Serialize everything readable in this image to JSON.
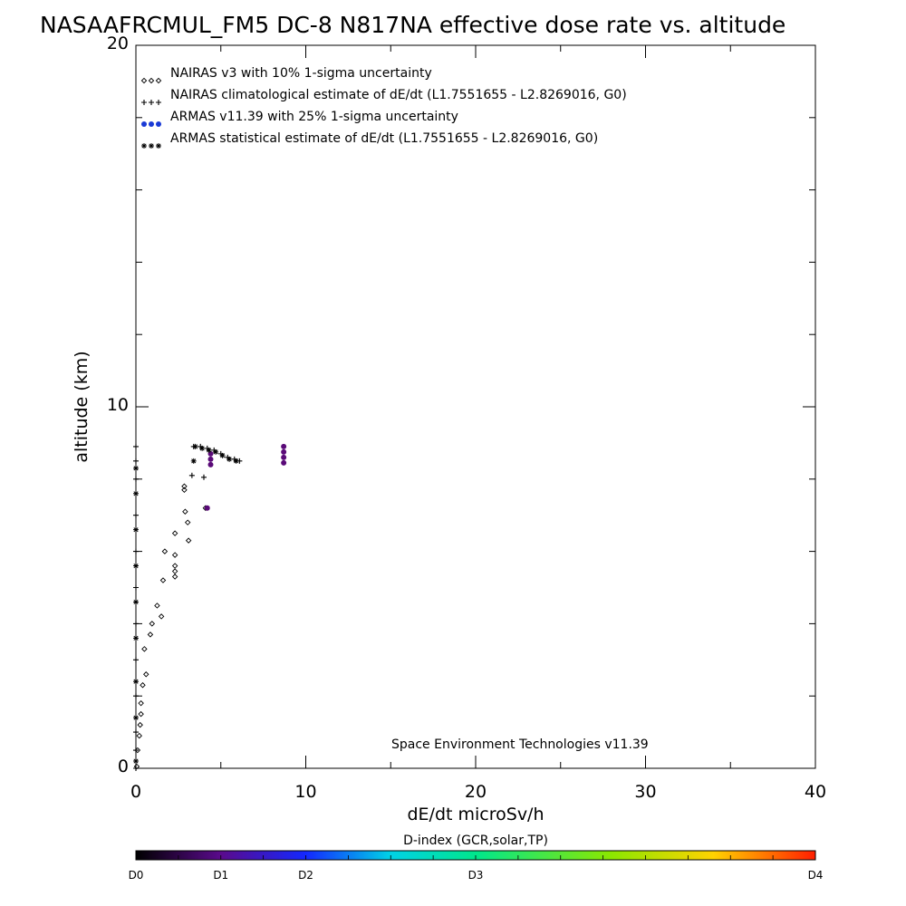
{
  "chart_data": {
    "type": "scatter",
    "title": "NASAAFRCMUL_FM5 DC-8   N817NA effective dose rate vs. altitude",
    "xlabel": "dE/dt microSv/h",
    "ylabel": "altitude (km)",
    "xlim": [
      0,
      40
    ],
    "ylim": [
      0,
      20
    ],
    "x_tick_labels": [
      "0",
      "10",
      "20",
      "30",
      "40"
    ],
    "y_tick_labels": [
      "0",
      "10",
      "20"
    ],
    "credit": "Space Environment Technologies v11.39",
    "legend_position": "top-left",
    "legend": [
      {
        "symbol": "◇◇◇",
        "label": "NAIRAS v3 with 10% 1-sigma uncertainty"
      },
      {
        "symbol": "+++",
        "label": "NAIRAS climatological estimate of dE/dt (L1.7551655 - L2.8269016, G0)"
      },
      {
        "symbol": "●●●",
        "label": "ARMAS v11.39 with 25% 1-sigma uncertainty"
      },
      {
        "symbol": "***",
        "label": "ARMAS statistical estimate of dE/dt (L1.7551655 - L2.8269016, G0)"
      }
    ],
    "series": [
      {
        "name": "NAIRAS v3 with 10% 1-sigma uncertainty",
        "marker": "diamond",
        "color": "#000000",
        "points": [
          [
            0.05,
            0.05
          ],
          [
            0.1,
            0.5
          ],
          [
            0.2,
            0.9
          ],
          [
            0.25,
            1.2
          ],
          [
            0.3,
            1.5
          ],
          [
            0.3,
            1.8
          ],
          [
            0.4,
            2.3
          ],
          [
            0.6,
            2.6
          ],
          [
            0.5,
            3.3
          ],
          [
            0.85,
            3.7
          ],
          [
            0.95,
            4.0
          ],
          [
            1.5,
            4.2
          ],
          [
            1.25,
            4.5
          ],
          [
            1.6,
            5.2
          ],
          [
            2.3,
            5.3
          ],
          [
            2.3,
            5.45
          ],
          [
            2.3,
            5.6
          ],
          [
            2.3,
            5.9
          ],
          [
            1.7,
            6.0
          ],
          [
            3.1,
            6.3
          ],
          [
            2.3,
            6.5
          ],
          [
            3.05,
            6.8
          ],
          [
            2.9,
            7.1
          ],
          [
            4.1,
            7.2
          ],
          [
            2.85,
            7.7
          ],
          [
            2.85,
            7.8
          ]
        ]
      },
      {
        "name": "NAIRAS climatological estimate of dE/dt (L1.7551655 - L2.8269016, G0)",
        "marker": "plus",
        "color": "#000000",
        "points": [
          [
            0.0,
            0.0
          ],
          [
            0.0,
            0.5
          ],
          [
            0.0,
            1.0
          ],
          [
            0.0,
            2.0
          ],
          [
            0.0,
            3.0
          ],
          [
            0.0,
            4.0
          ],
          [
            0.0,
            5.0
          ],
          [
            0.0,
            6.0
          ],
          [
            0.0,
            7.0
          ],
          [
            0.0,
            8.0
          ],
          [
            0.0,
            8.5
          ],
          [
            0.0,
            8.9
          ],
          [
            3.3,
            8.1
          ],
          [
            4.0,
            8.05
          ],
          [
            3.4,
            8.9
          ],
          [
            3.8,
            8.9
          ],
          [
            4.2,
            8.85
          ],
          [
            4.6,
            8.8
          ],
          [
            5.0,
            8.7
          ],
          [
            5.4,
            8.6
          ],
          [
            5.8,
            8.55
          ],
          [
            6.1,
            8.5
          ]
        ]
      },
      {
        "name": "ARMAS v11.39 with 25% 1-sigma uncertainty",
        "marker": "dot",
        "color": "#5a0a78",
        "points": [
          [
            4.2,
            7.2
          ],
          [
            4.4,
            8.4
          ],
          [
            4.4,
            8.55
          ],
          [
            4.4,
            8.7
          ],
          [
            8.7,
            8.45
          ],
          [
            8.7,
            8.6
          ],
          [
            8.7,
            8.75
          ],
          [
            8.7,
            8.9
          ]
        ]
      },
      {
        "name": "ARMAS statistical estimate of dE/dt (L1.7551655 - L2.8269016, G0)",
        "marker": "asterisk",
        "color": "#000000",
        "points": [
          [
            0.0,
            0.2
          ],
          [
            0.0,
            1.4
          ],
          [
            0.0,
            2.4
          ],
          [
            0.0,
            3.6
          ],
          [
            0.0,
            4.6
          ],
          [
            0.0,
            5.6
          ],
          [
            0.0,
            6.6
          ],
          [
            0.0,
            7.6
          ],
          [
            0.0,
            8.3
          ],
          [
            3.5,
            8.9
          ],
          [
            3.9,
            8.85
          ],
          [
            4.3,
            8.8
          ],
          [
            4.7,
            8.75
          ],
          [
            5.1,
            8.65
          ],
          [
            5.5,
            8.55
          ],
          [
            5.9,
            8.5
          ],
          [
            3.4,
            8.5
          ]
        ]
      }
    ],
    "colorbar": {
      "title": "D-index (GCR,solar,TP)",
      "labels": [
        "D0",
        "D1",
        "D2",
        "D3",
        "D4"
      ],
      "label_values": [
        0,
        0.25,
        0.5,
        1.0,
        2.0
      ],
      "stops": [
        {
          "v": 0.0,
          "color": "#000000"
        },
        {
          "v": 0.25,
          "color": "#5a0a8c"
        },
        {
          "v": 0.5,
          "color": "#1428ff"
        },
        {
          "v": 0.75,
          "color": "#00d2e6"
        },
        {
          "v": 1.0,
          "color": "#00e68c"
        },
        {
          "v": 1.4,
          "color": "#8ce600"
        },
        {
          "v": 1.7,
          "color": "#ffd200"
        },
        {
          "v": 2.0,
          "color": "#ff1e00"
        }
      ]
    }
  }
}
